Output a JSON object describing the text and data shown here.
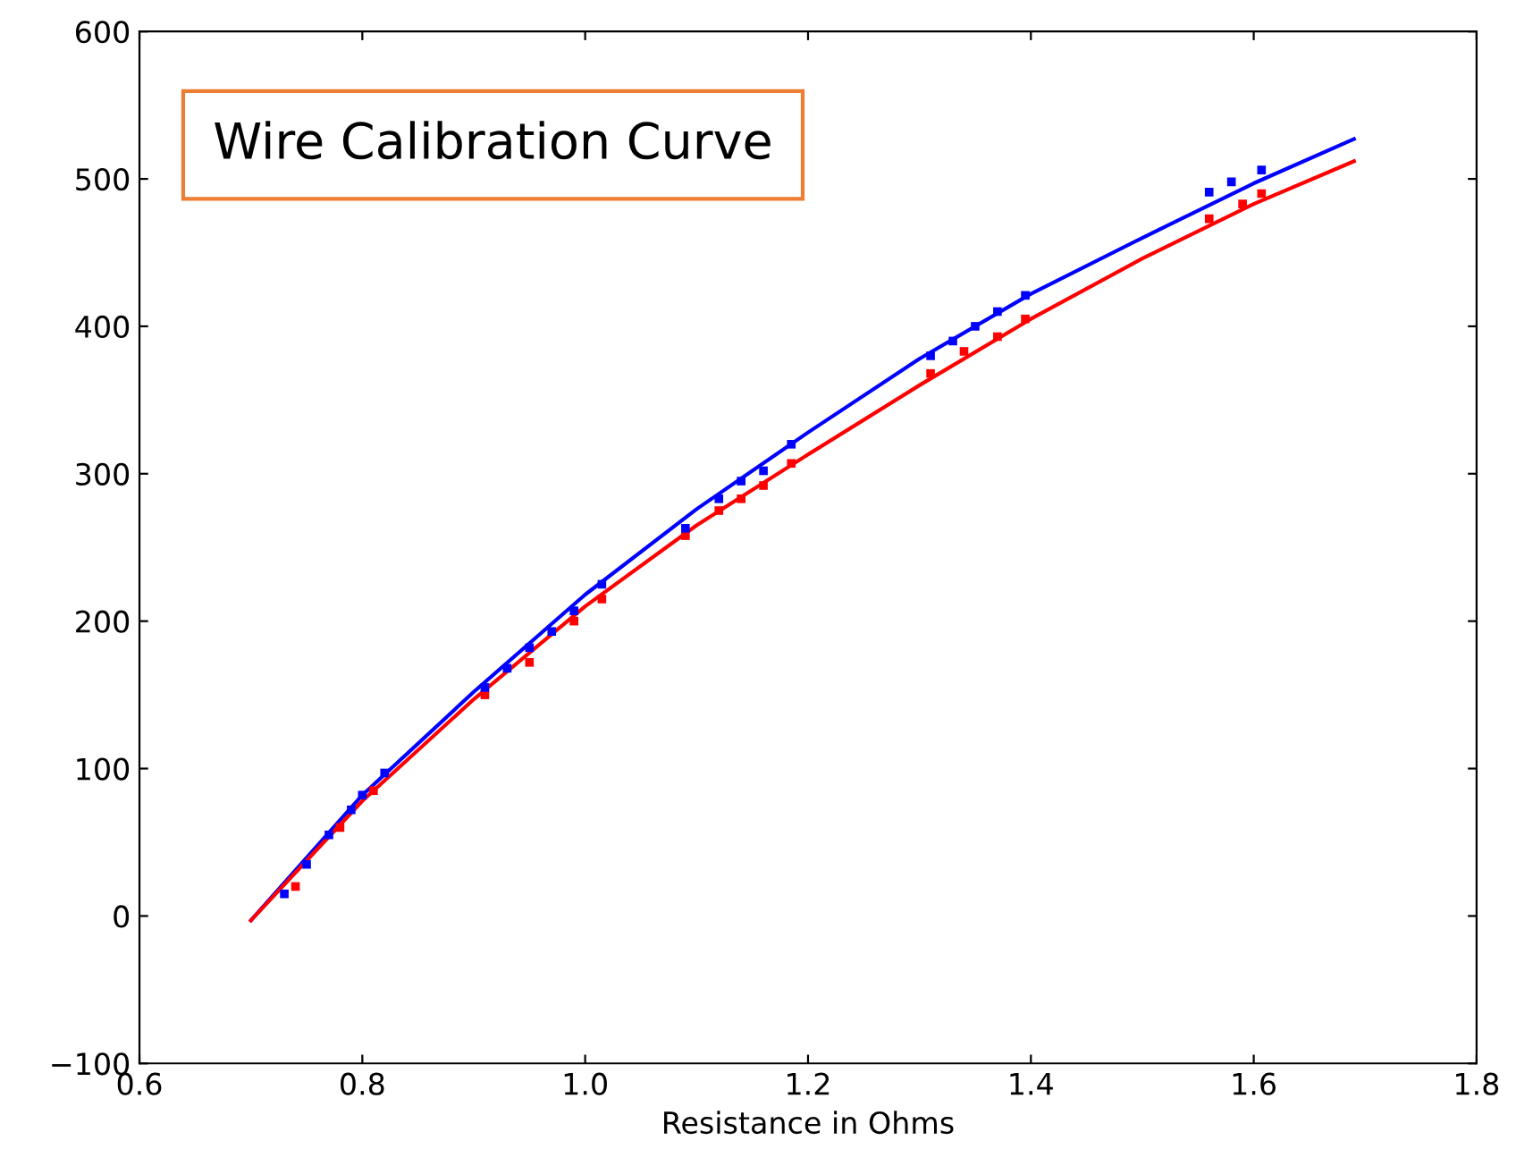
{
  "chart_data": {
    "type": "scatter",
    "title": "Wire Calibration Curve",
    "xlabel": "Resistance in Ohms",
    "xlim": [
      0.6,
      1.8
    ],
    "xticks": [
      0.6,
      0.8,
      {
        "value": 1.0,
        "label": "1.0"
      },
      1.2,
      1.4,
      1.6,
      1.8
    ],
    "ylim": [
      -100,
      600
    ],
    "yticks": [
      -100,
      0,
      100,
      200,
      300,
      400,
      500,
      600
    ],
    "grid": false,
    "legend": false,
    "series": [
      {
        "type": "line",
        "color": "#0000ff",
        "x": [
          0.7,
          0.8,
          0.9,
          1.0,
          1.1,
          1.2,
          1.3,
          1.4,
          1.5,
          1.6,
          1.69
        ],
        "values": [
          -3,
          82,
          152,
          218,
          276,
          328,
          378,
          422,
          460,
          497,
          527
        ]
      },
      {
        "type": "line",
        "color": "#ff0000",
        "x": [
          0.7,
          0.8,
          0.9,
          1.0,
          1.1,
          1.2,
          1.3,
          1.4,
          1.5,
          1.6,
          1.69
        ],
        "values": [
          -3,
          78,
          147,
          210,
          265,
          313,
          360,
          405,
          446,
          483,
          512
        ]
      },
      {
        "color": "#ff0000",
        "x": [
          0.74,
          0.78,
          0.81,
          0.91,
          0.95,
          0.99,
          1.015,
          1.09,
          1.12,
          1.14,
          1.16,
          1.185,
          1.31,
          1.34,
          1.37,
          1.395,
          1.56,
          1.59,
          1.607
        ],
        "values": [
          20,
          60,
          85,
          150,
          172,
          200,
          215,
          258,
          275,
          283,
          292,
          307,
          368,
          383,
          393,
          405,
          473,
          483,
          490
        ]
      },
      {
        "color": "#0000ff",
        "x": [
          0.73,
          0.75,
          0.77,
          0.79,
          0.8,
          0.82,
          0.91,
          0.93,
          0.95,
          0.97,
          0.99,
          1.015,
          1.09,
          1.12,
          1.14,
          1.16,
          1.185,
          1.31,
          1.33,
          1.35,
          1.37,
          1.395,
          1.56,
          1.58,
          1.607
        ],
        "values": [
          15,
          35,
          55,
          72,
          82,
          97,
          155,
          168,
          182,
          193,
          207,
          225,
          263,
          283,
          295,
          302,
          320,
          380,
          390,
          400,
          410,
          421,
          491,
          498,
          506
        ]
      }
    ]
  }
}
